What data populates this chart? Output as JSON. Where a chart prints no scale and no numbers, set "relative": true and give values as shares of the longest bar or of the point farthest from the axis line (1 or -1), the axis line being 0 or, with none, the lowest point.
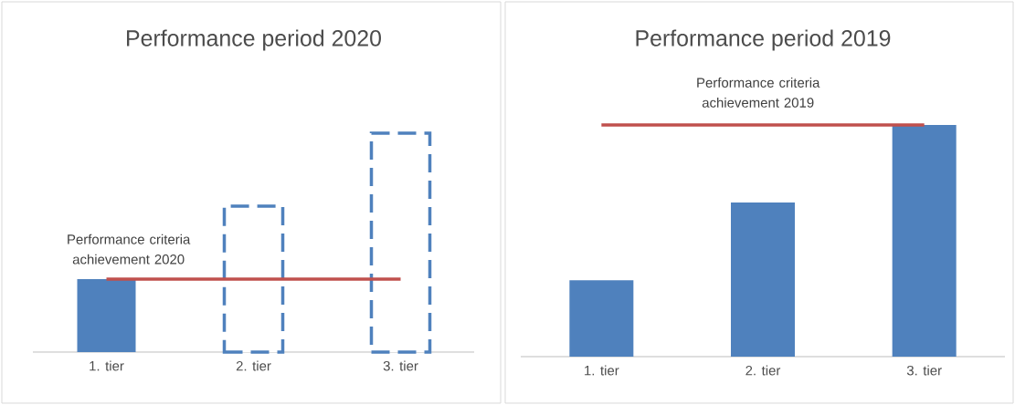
{
  "chart_data": [
    {
      "type": "bar",
      "title": "Performance period 2020",
      "relative": true,
      "categories": [
        "1. tier",
        "2. tier",
        "3. tier"
      ],
      "series": [
        {
          "color": "#4f81bd",
          "values": [
            0.333,
            null,
            null
          ]
        },
        {
          "color": "#4f81bd",
          "line_style": "dashed",
          "values": [
            null,
            0.667,
            1
          ]
        }
      ],
      "ref_lines": [
        {
          "axis": "y",
          "value": 0.333,
          "label": "Performance criteria achievement 2020",
          "color": "#c0504d"
        }
      ]
    },
    {
      "type": "bar",
      "title": "Performance period 2019",
      "relative": true,
      "categories": [
        "1. tier",
        "2. tier",
        "3. tier"
      ],
      "series": [
        {
          "color": "#4f81bd",
          "values": [
            0.33,
            0.665,
            1
          ]
        }
      ],
      "ref_lines": [
        {
          "axis": "y",
          "value": 1,
          "label": "Performance criteria achievement 2019",
          "color": "#c0504d"
        }
      ]
    }
  ]
}
